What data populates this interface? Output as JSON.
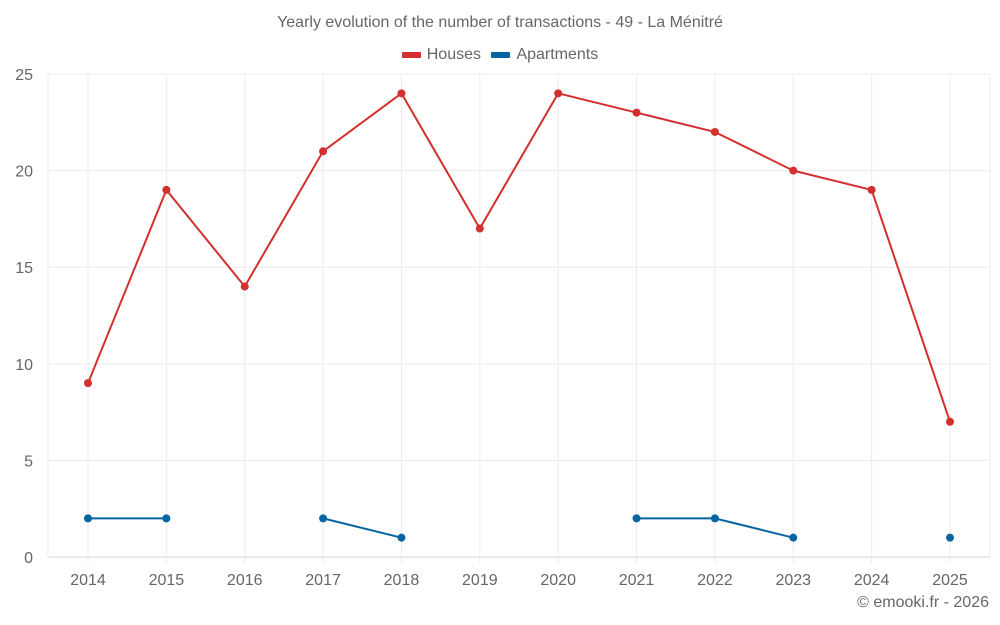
{
  "chart_data": {
    "type": "line",
    "title": "Yearly evolution of the number of transactions - 49 - La Ménitré",
    "xlabel": "",
    "ylabel": "",
    "categories": [
      "2014",
      "2015",
      "2016",
      "2017",
      "2018",
      "2019",
      "2020",
      "2021",
      "2022",
      "2023",
      "2024",
      "2025"
    ],
    "ylim": [
      0,
      25
    ],
    "yticks": [
      0,
      5,
      10,
      15,
      20,
      25
    ],
    "grid": true,
    "legend_position": "top-center",
    "series": [
      {
        "name": "Houses",
        "color": "#d32f2f",
        "values": [
          9,
          19,
          14,
          21,
          24,
          17,
          24,
          23,
          22,
          20,
          19,
          7
        ]
      },
      {
        "name": "Apartments",
        "color": "#0565a0",
        "values": [
          2,
          2,
          null,
          2,
          1,
          null,
          null,
          2,
          2,
          1,
          null,
          1
        ]
      }
    ]
  },
  "credit": "© emooki.fr - 2026"
}
